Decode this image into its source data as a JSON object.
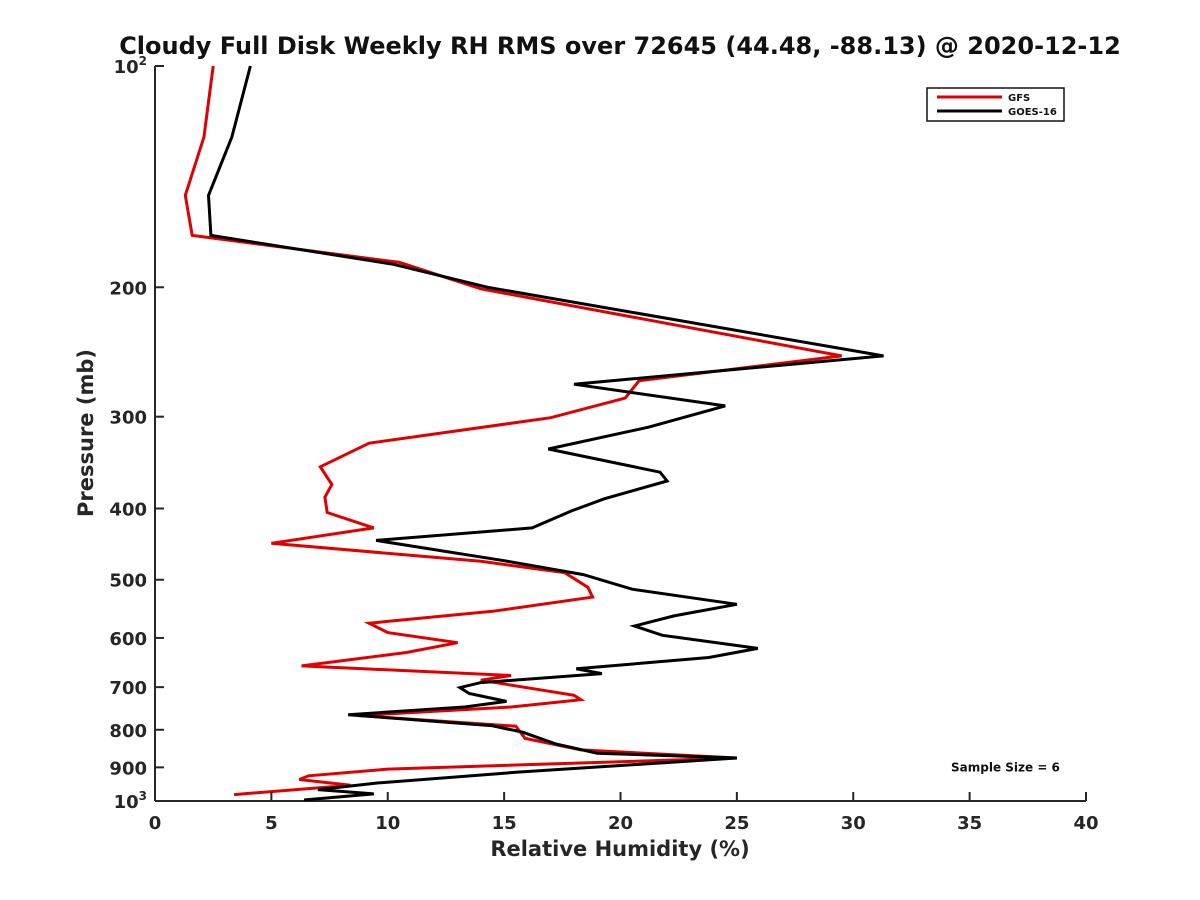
{
  "chart_data": {
    "type": "line",
    "title": "Cloudy Full Disk Weekly RH RMS over 72645 (44.48, -88.13) @ 2020-12-12",
    "xlabel": "Relative Humidity (%)",
    "ylabel": "Pressure (mb)",
    "xlim": [
      0,
      40
    ],
    "ylim": [
      100,
      1000
    ],
    "yscale": "log",
    "y_reversed": true,
    "x_ticks": [
      "0",
      "5",
      "10",
      "15",
      "20",
      "25",
      "30",
      "35",
      "40"
    ],
    "y_ticks": [
      {
        "value": 100,
        "base": "10",
        "exp": "2"
      },
      {
        "value": 200,
        "label": "200"
      },
      {
        "value": 300,
        "label": "300"
      },
      {
        "value": 400,
        "label": "400"
      },
      {
        "value": 500,
        "label": "500"
      },
      {
        "value": 600,
        "label": "600"
      },
      {
        "value": 700,
        "label": "700"
      },
      {
        "value": 800,
        "label": "800"
      },
      {
        "value": 900,
        "label": "900"
      },
      {
        "value": 1000,
        "base": "10",
        "exp": "3"
      }
    ],
    "legend_position": "top-right",
    "grid": false,
    "series": [
      {
        "name": "GFS",
        "color": "#e00000",
        "points": [
          [
            2.5,
            100
          ],
          [
            2.1,
            125
          ],
          [
            1.3,
            150
          ],
          [
            1.6,
            170
          ],
          [
            10.5,
            185
          ],
          [
            14.0,
            201
          ],
          [
            29.5,
            248
          ],
          [
            20.8,
            268
          ],
          [
            20.2,
            283
          ],
          [
            17.0,
            301
          ],
          [
            9.2,
            326
          ],
          [
            7.1,
            351
          ],
          [
            7.6,
            371
          ],
          [
            7.3,
            386
          ],
          [
            7.4,
            405
          ],
          [
            9.4,
            425
          ],
          [
            5.0,
            446
          ],
          [
            14.0,
            472
          ],
          [
            17.6,
            489
          ],
          [
            18.6,
            512
          ],
          [
            18.8,
            528
          ],
          [
            14.5,
            552
          ],
          [
            9.2,
            573
          ],
          [
            10.0,
            590
          ],
          [
            13.0,
            609
          ],
          [
            10.8,
            628
          ],
          [
            6.3,
            655
          ],
          [
            15.3,
            675
          ],
          [
            14.0,
            685
          ],
          [
            18.0,
            718
          ],
          [
            18.3,
            728
          ],
          [
            15.3,
            745
          ],
          [
            8.7,
            765
          ],
          [
            15.5,
            791
          ],
          [
            15.9,
            822
          ],
          [
            18.3,
            852
          ],
          [
            25.0,
            874
          ],
          [
            10.0,
            905
          ],
          [
            6.6,
            924
          ],
          [
            6.2,
            935
          ],
          [
            8.4,
            952
          ],
          [
            3.4,
            980
          ]
        ]
      },
      {
        "name": "GOES-16",
        "color": "#000000",
        "points": [
          [
            4.1,
            100
          ],
          [
            3.3,
            125
          ],
          [
            2.3,
            150
          ],
          [
            2.4,
            170
          ],
          [
            10.2,
            186
          ],
          [
            14.3,
            200
          ],
          [
            31.3,
            248
          ],
          [
            18.0,
            271
          ],
          [
            24.5,
            290
          ],
          [
            21.2,
            310
          ],
          [
            16.9,
            332
          ],
          [
            21.7,
            357
          ],
          [
            22.0,
            367
          ],
          [
            19.3,
            388
          ],
          [
            17.9,
            403
          ],
          [
            16.2,
            425
          ],
          [
            9.5,
            442
          ],
          [
            15.0,
            471
          ],
          [
            18.4,
            492
          ],
          [
            20.5,
            515
          ],
          [
            25.0,
            540
          ],
          [
            22.3,
            560
          ],
          [
            20.6,
            578
          ],
          [
            21.8,
            595
          ],
          [
            25.9,
            620
          ],
          [
            23.8,
            638
          ],
          [
            18.1,
            661
          ],
          [
            19.2,
            671
          ],
          [
            14.0,
            690
          ],
          [
            13.1,
            701
          ],
          [
            13.5,
            714
          ],
          [
            15.1,
            732
          ],
          [
            13.3,
            745
          ],
          [
            8.3,
            763
          ],
          [
            14.5,
            790
          ],
          [
            15.8,
            806
          ],
          [
            17.2,
            836
          ],
          [
            19.0,
            861
          ],
          [
            25.0,
            874
          ],
          [
            15.5,
            914
          ],
          [
            9.6,
            945
          ],
          [
            7.0,
            965
          ],
          [
            9.4,
            978
          ],
          [
            6.4,
            997
          ]
        ]
      }
    ],
    "annotations": [
      {
        "text": "Sample Size = 6",
        "x": 34.2,
        "y": 900
      }
    ]
  }
}
